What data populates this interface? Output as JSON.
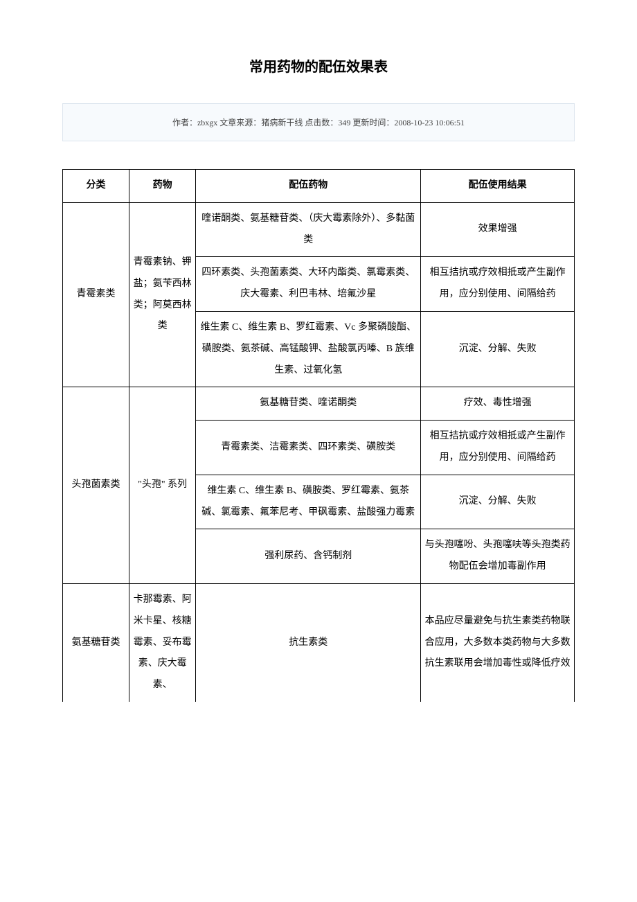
{
  "title": "常用药物的配伍效果表",
  "meta": {
    "author_label": "作者：",
    "author": "zbxgx",
    "source_label": " 文章来源：",
    "source": "猪病新干线",
    "hits_label": " 点击数：",
    "hits": "349",
    "update_label": " 更新时间：",
    "update": "2008-10-23 10:06:51"
  },
  "headers": {
    "category": "分类",
    "drug": "药物",
    "compat_drug": "配伍药物",
    "result": "配伍使用结果"
  },
  "rows": [
    {
      "category": "青霉素类",
      "drug": "青霉素钠、钾盐；氨苄西林类；阿莫西林类",
      "compat": "喹诺酮类、氨基糖苷类、（庆大霉素除外）、多黏菌类",
      "result": "效果增强"
    },
    {
      "compat": "四环素类、头孢菌素类、大环内酯类、氯霉素类、庆大霉素、利巴韦林、培氟沙星",
      "result": "相互拮抗或疗效相抵或产生副作用，应分别使用、间隔给药"
    },
    {
      "compat": "维生素 C、维生素 B、罗红霉素、Vc 多聚磷酸酯、磺胺类、氨茶碱、高锰酸钾、盐酸氯丙嗪、B 族维生素、过氧化氢",
      "result": "沉淀、分解、失败"
    },
    {
      "category": "头孢菌素类",
      "drug": "\"头孢\" 系列",
      "compat": "氨基糖苷类、喹诺酮类",
      "result": "疗效、毒性增强"
    },
    {
      "compat": "青霉素类、洁霉素类、四环素类、磺胺类",
      "result": "相互拮抗或疗效相抵或产生副作用，应分别使用、间隔给药"
    },
    {
      "compat": "维生素 C、维生素 B、磺胺类、罗红霉素、氨茶碱、氯霉素、氟苯尼考、甲砜霉素、盐酸强力霉素",
      "result": "沉淀、分解、失败"
    },
    {
      "compat": "强利尿药、含钙制剂",
      "result": "与头孢噻吩、头孢噻呋等头孢类药物配伍会增加毒副作用"
    },
    {
      "category": "氨基糖苷类",
      "drug": "卡那霉素、阿米卡星、核糖霉素、妥布霉素、庆大霉素、",
      "compat": "抗生素类",
      "result": "本品应尽量避免与抗生素类药物联合应用，大多数本类药物与大多数抗生素联用会增加毒性或降低疗效"
    }
  ]
}
